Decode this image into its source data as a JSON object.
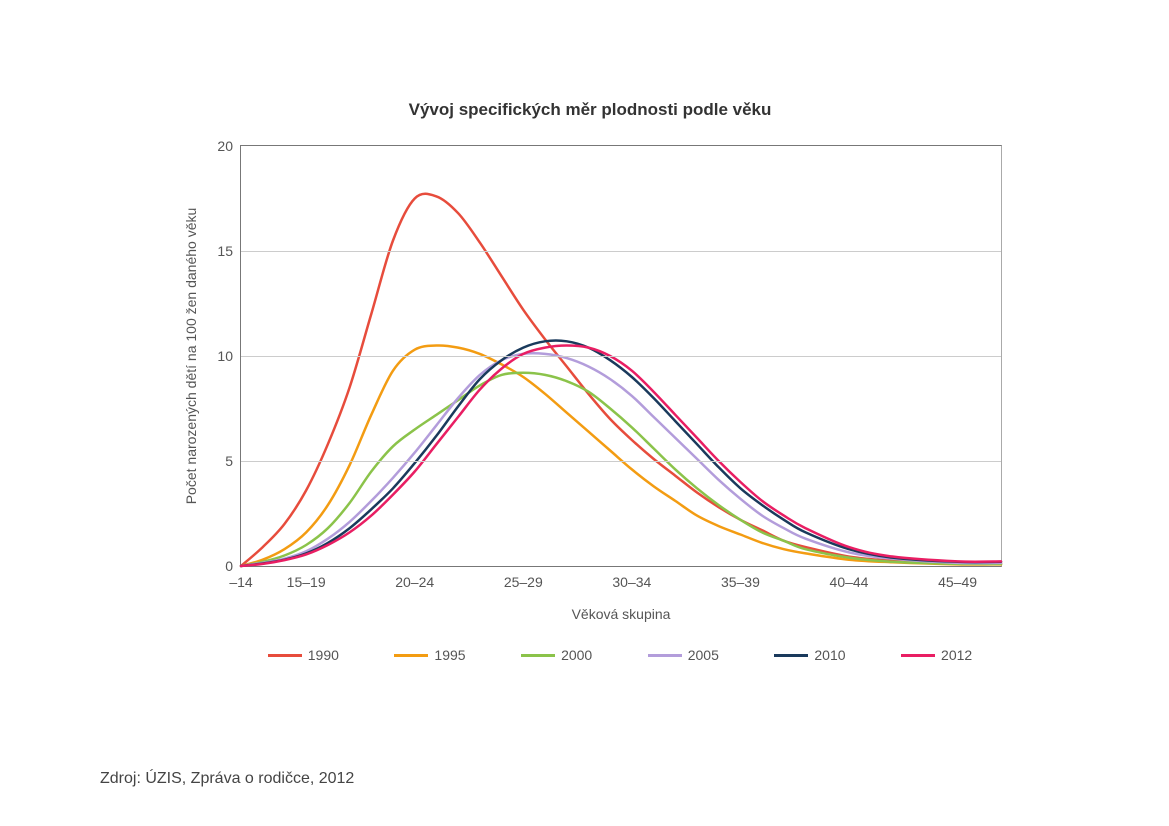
{
  "chart": {
    "type": "line",
    "title": "Vývoj specifických měr plodnosti podle věku",
    "title_fontsize": 17,
    "title_color": "#333333",
    "xlabel": "Věková skupina",
    "ylabel": "Počet narozených dětí na 100 žen daného věku",
    "axis_label_fontsize": 14,
    "axis_label_color": "#555555",
    "tick_fontsize": 14,
    "tick_color": "#555555",
    "background_color": "#ffffff",
    "plot_border_color": "#777777",
    "grid_color": "#cccccc",
    "x_categories": [
      "–14",
      "15–19",
      "20–24",
      "25–29",
      "30–34",
      "35–39",
      "40–44",
      "45–49"
    ],
    "x_positions": [
      14,
      17,
      22,
      27,
      32,
      37,
      42,
      47
    ],
    "xlim": [
      14,
      49
    ],
    "ylim": [
      0,
      20
    ],
    "ytick_step": 5,
    "line_width": 2.5,
    "series": [
      {
        "name": "1990",
        "color": "#e74c3c",
        "x": [
          14,
          15,
          16,
          17,
          18,
          19,
          20,
          21,
          22,
          23,
          24,
          25,
          26,
          27,
          28,
          29,
          30,
          31,
          32,
          33,
          34,
          35,
          36,
          37,
          38,
          39,
          40,
          42,
          44,
          47,
          49
        ],
        "y": [
          0.0,
          0.9,
          2.0,
          3.6,
          5.8,
          8.5,
          12.0,
          15.5,
          17.5,
          17.6,
          16.8,
          15.4,
          13.8,
          12.2,
          10.8,
          9.5,
          8.2,
          7.0,
          6.0,
          5.1,
          4.3,
          3.5,
          2.8,
          2.2,
          1.7,
          1.2,
          0.9,
          0.45,
          0.25,
          0.1,
          0.1
        ]
      },
      {
        "name": "1995",
        "color": "#f39c12",
        "x": [
          14,
          15,
          16,
          17,
          18,
          19,
          20,
          21,
          22,
          23,
          24,
          25,
          26,
          27,
          28,
          29,
          30,
          31,
          32,
          33,
          34,
          35,
          36,
          37,
          38,
          39,
          40,
          42,
          44,
          47,
          49
        ],
        "y": [
          0.0,
          0.3,
          0.8,
          1.6,
          2.9,
          4.8,
          7.2,
          9.3,
          10.3,
          10.5,
          10.4,
          10.1,
          9.6,
          9.0,
          8.2,
          7.3,
          6.4,
          5.5,
          4.6,
          3.8,
          3.1,
          2.4,
          1.9,
          1.5,
          1.1,
          0.8,
          0.6,
          0.3,
          0.18,
          0.08,
          0.08
        ]
      },
      {
        "name": "2000",
        "color": "#8bc34a",
        "x": [
          14,
          15,
          16,
          17,
          18,
          19,
          20,
          21,
          22,
          23,
          24,
          25,
          26,
          27,
          28,
          29,
          30,
          31,
          32,
          33,
          34,
          35,
          36,
          37,
          38,
          39,
          40,
          42,
          44,
          47,
          49
        ],
        "y": [
          0.0,
          0.2,
          0.5,
          1.0,
          1.8,
          3.0,
          4.5,
          5.7,
          6.5,
          7.2,
          7.9,
          8.6,
          9.1,
          9.2,
          9.1,
          8.8,
          8.3,
          7.5,
          6.6,
          5.6,
          4.6,
          3.7,
          2.9,
          2.2,
          1.6,
          1.2,
          0.8,
          0.4,
          0.2,
          0.1,
          0.1
        ]
      },
      {
        "name": "2005",
        "color": "#b39ddb",
        "x": [
          14,
          15,
          16,
          17,
          18,
          19,
          20,
          21,
          22,
          23,
          24,
          25,
          26,
          27,
          28,
          29,
          30,
          31,
          32,
          33,
          34,
          35,
          36,
          37,
          38,
          39,
          40,
          42,
          44,
          47,
          49
        ],
        "y": [
          0.0,
          0.15,
          0.35,
          0.7,
          1.3,
          2.1,
          3.1,
          4.2,
          5.4,
          6.7,
          8.0,
          9.1,
          9.8,
          10.1,
          10.1,
          9.9,
          9.5,
          8.9,
          8.1,
          7.1,
          6.1,
          5.1,
          4.1,
          3.2,
          2.4,
          1.8,
          1.3,
          0.65,
          0.35,
          0.15,
          0.15
        ]
      },
      {
        "name": "2010",
        "color": "#1a3a5c",
        "x": [
          14,
          15,
          16,
          17,
          18,
          19,
          20,
          21,
          22,
          23,
          24,
          25,
          26,
          27,
          28,
          29,
          30,
          31,
          32,
          33,
          34,
          35,
          36,
          37,
          38,
          39,
          40,
          42,
          44,
          47,
          49
        ],
        "y": [
          0.0,
          0.12,
          0.3,
          0.6,
          1.1,
          1.8,
          2.7,
          3.7,
          4.9,
          6.2,
          7.6,
          8.9,
          9.8,
          10.4,
          10.7,
          10.7,
          10.4,
          9.8,
          9.0,
          8.0,
          6.9,
          5.8,
          4.7,
          3.7,
          2.9,
          2.2,
          1.6,
          0.8,
          0.4,
          0.2,
          0.2
        ]
      },
      {
        "name": "2012",
        "color": "#e91e63",
        "x": [
          14,
          15,
          16,
          17,
          18,
          19,
          20,
          21,
          22,
          23,
          24,
          25,
          26,
          27,
          28,
          29,
          30,
          31,
          32,
          33,
          34,
          35,
          36,
          37,
          38,
          39,
          40,
          42,
          44,
          47,
          49
        ],
        "y": [
          0.0,
          0.1,
          0.28,
          0.55,
          1.0,
          1.6,
          2.4,
          3.4,
          4.5,
          5.8,
          7.1,
          8.4,
          9.4,
          10.1,
          10.4,
          10.5,
          10.4,
          10.0,
          9.3,
          8.3,
          7.2,
          6.1,
          5.0,
          4.0,
          3.1,
          2.4,
          1.8,
          0.9,
          0.45,
          0.22,
          0.22
        ]
      }
    ],
    "legend_position": "bottom"
  },
  "source": "Zdroj: ÚZIS, Zpráva o rodičce, 2012",
  "source_fontsize": 16,
  "source_color": "#444444"
}
